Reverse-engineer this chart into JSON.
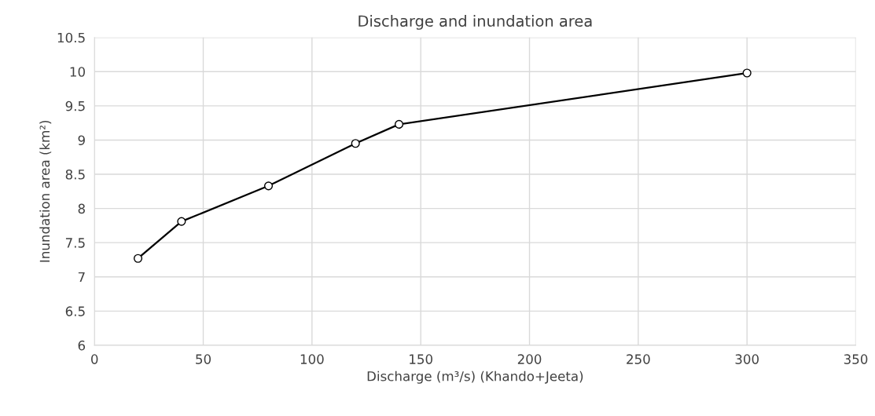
{
  "chart_data": {
    "type": "line",
    "title": "Discharge and inundation area",
    "xlabel": "Discharge (m³/s) (Khando+Jeeta)",
    "ylabel": "Inundation area (km²)",
    "x": [
      20,
      40,
      80,
      120,
      140,
      300
    ],
    "series": [
      {
        "color": "#000000",
        "values": [
          7.27,
          7.81,
          8.33,
          8.95,
          9.23,
          9.98
        ]
      }
    ],
    "xlim": [
      0,
      350
    ],
    "xticks": [
      0,
      50,
      100,
      150,
      200,
      250,
      300,
      350
    ],
    "ylim": [
      6,
      10.5
    ],
    "yticks": [
      6,
      6.5,
      7,
      7.5,
      8,
      8.5,
      9,
      9.5,
      10,
      10.5
    ],
    "grid": true,
    "marker": "circle",
    "line_style": "solid"
  }
}
